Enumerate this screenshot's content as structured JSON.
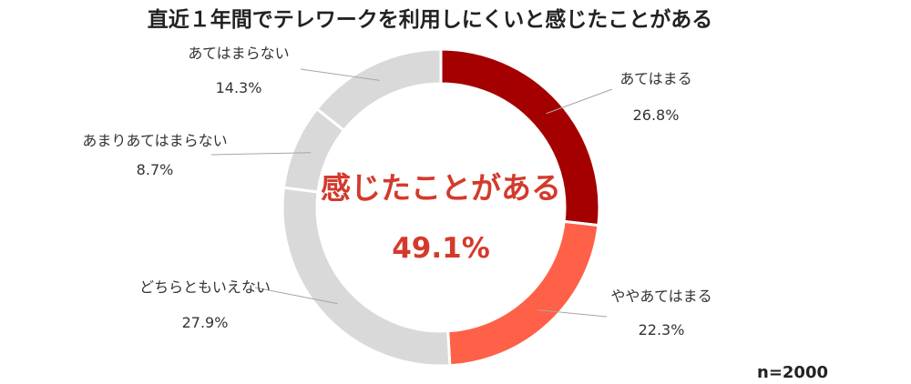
{
  "chart_data": {
    "type": "pie",
    "title": "直近１年間でテレワークを利用しにくいと感じたことがある",
    "categories": [
      "あてはまる",
      "ややあてはまる",
      "どちらともいえない",
      "あまりあてはまらない",
      "あてはまらない"
    ],
    "values": [
      26.8,
      22.3,
      27.9,
      8.7,
      14.3
    ],
    "value_labels": [
      "26.8%",
      "22.3%",
      "27.9%",
      "8.7%",
      "14.3%"
    ],
    "colors": [
      "#a50000",
      "#ff6048",
      "#d9d9d9",
      "#d9d9d9",
      "#d9d9d9"
    ],
    "label_colors": [
      "#a50000",
      "#ff6048",
      "#333333",
      "#333333",
      "#333333"
    ],
    "center_label": "感じたことがある",
    "center_value": "49.1%",
    "center_color": "#d33a2c",
    "sample_size": "n=2000"
  }
}
